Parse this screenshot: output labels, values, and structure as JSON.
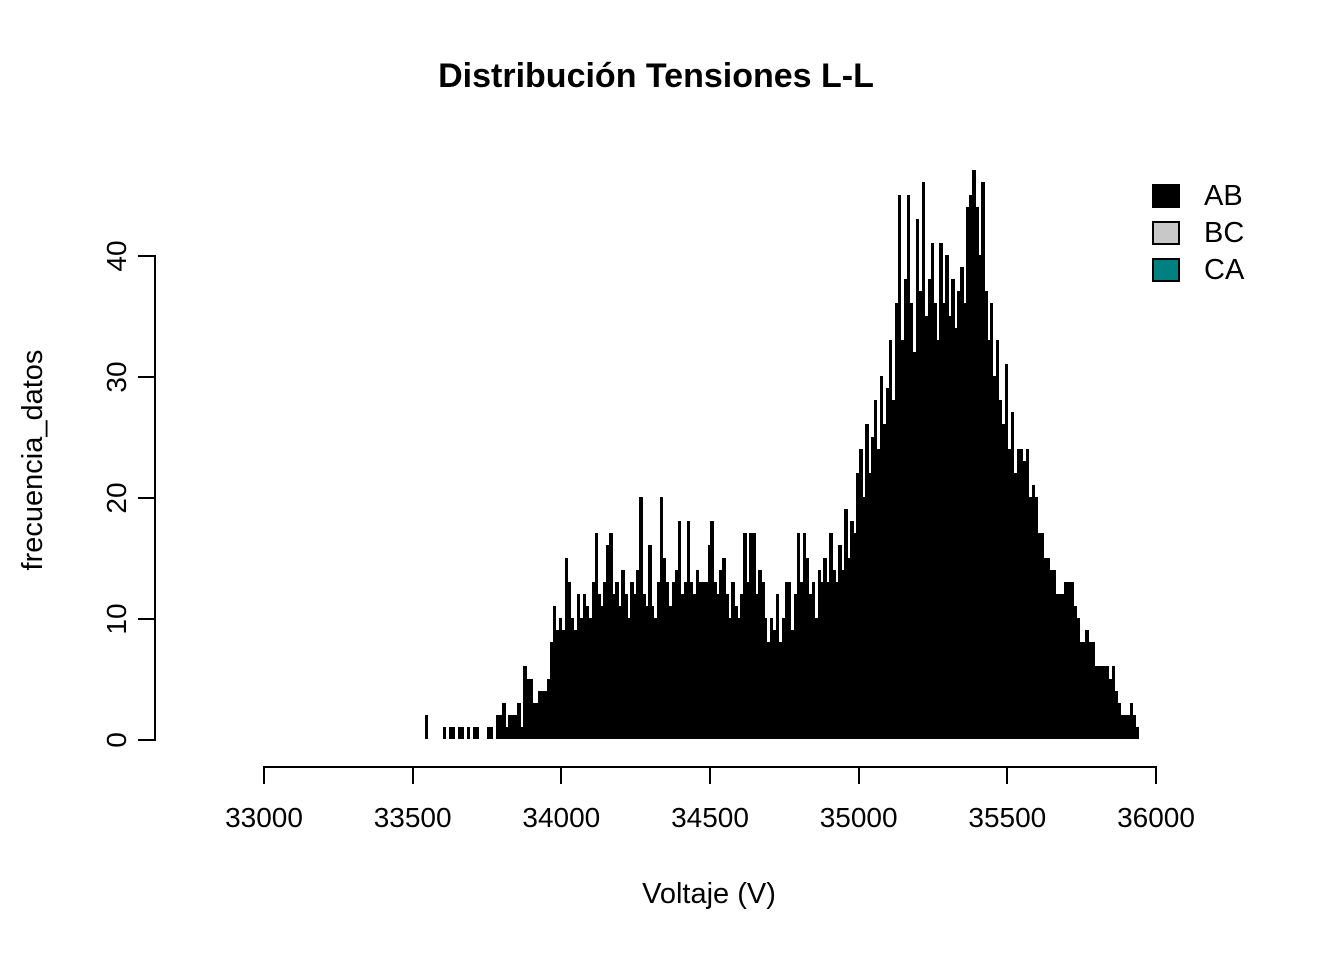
{
  "title": "Distribución Tensiones L-L",
  "legend": {
    "items": [
      {
        "label": "AB",
        "color": "#000000"
      },
      {
        "label": "BC",
        "color": "#C8C8C8"
      },
      {
        "label": "CA",
        "color": "#008080"
      }
    ]
  },
  "chart_data": {
    "type": "bar",
    "subtype": "histogram",
    "title": "Distribución Tensiones L-L",
    "xlabel": "Voltaje (V)",
    "ylabel": "frecuencia_datos",
    "x_tick_labels": [
      "33000",
      "33500",
      "34000",
      "34500",
      "35000",
      "35500",
      "36000"
    ],
    "x_ticks": [
      33000,
      33500,
      34000,
      34500,
      35000,
      35500,
      36000
    ],
    "y_tick_labels": [
      "0",
      "10",
      "20",
      "30",
      "40"
    ],
    "y_ticks": [
      0,
      10,
      20,
      30,
      40
    ],
    "xlim": [
      33000,
      36000
    ],
    "ylim": [
      0,
      47
    ],
    "grid": false,
    "legend_position": "topright",
    "bar_color": "#000000",
    "series_name": "AB",
    "legend": [
      {
        "label": "AB",
        "color": "#000000"
      },
      {
        "label": "BC",
        "color": "#C8C8C8"
      },
      {
        "label": "CA",
        "color": "#008080"
      }
    ],
    "bin_start": 33545,
    "bin_width": 10,
    "values": [
      2,
      0,
      0,
      0,
      0,
      0,
      1,
      0,
      1,
      1,
      0,
      1,
      1,
      0,
      1,
      0,
      1,
      1,
      0,
      0,
      0,
      1,
      1,
      0,
      2,
      2,
      3,
      1,
      2,
      2,
      2,
      3,
      1,
      6,
      5,
      5,
      3,
      3,
      4,
      4,
      4,
      5,
      8,
      11,
      9,
      10,
      9,
      15,
      13,
      10,
      9,
      12,
      10,
      12,
      11,
      10,
      13,
      17,
      12,
      11,
      13,
      16,
      17,
      12,
      13,
      11,
      14,
      12,
      10,
      13,
      12,
      14,
      20,
      12,
      11,
      16,
      11,
      10,
      13,
      20,
      15,
      13,
      11,
      13,
      14,
      18,
      12,
      13,
      18,
      13,
      12,
      14,
      13,
      13,
      13,
      16,
      18,
      13,
      12,
      14,
      15,
      12,
      10,
      13,
      11,
      10,
      12,
      17,
      13,
      17,
      17,
      12,
      14,
      13,
      10,
      8,
      10,
      9,
      12,
      8,
      10,
      13,
      13,
      9,
      12,
      17,
      13,
      17,
      15,
      12,
      13,
      10,
      14,
      13,
      15,
      13,
      17,
      14,
      13,
      16,
      14,
      19,
      15,
      18,
      17,
      22,
      24,
      20,
      26,
      22,
      25,
      28,
      24,
      30,
      26,
      29,
      33,
      28,
      36,
      45,
      33,
      38,
      45,
      36,
      32,
      43,
      37,
      46,
      35,
      38,
      41,
      36,
      33,
      41,
      36,
      40,
      35,
      38,
      34,
      37,
      39,
      36,
      44,
      45,
      47,
      44,
      40,
      46,
      37,
      33,
      36,
      30,
      33,
      28,
      26,
      31,
      24,
      27,
      22,
      24,
      24,
      23,
      24,
      20,
      21,
      20,
      17,
      17,
      15,
      15,
      14,
      14,
      12,
      12,
      12,
      13,
      13,
      13,
      11,
      10,
      8,
      8,
      9,
      8,
      8,
      6,
      6,
      6,
      6,
      6,
      5,
      6,
      4,
      3,
      2,
      2,
      2,
      3,
      2,
      1
    ]
  }
}
